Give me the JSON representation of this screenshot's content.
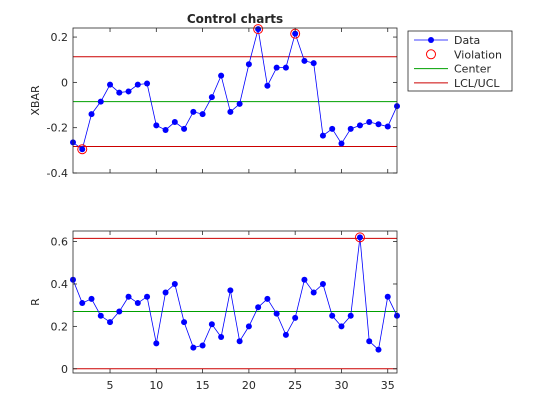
{
  "chart_data": [
    {
      "type": "line",
      "title": "Control charts",
      "xlabel": "",
      "ylabel": "XBAR",
      "xlim": [
        1,
        36
      ],
      "ylim": [
        -0.4,
        0.24
      ],
      "yticks": [
        -0.4,
        -0.2,
        0,
        0.2
      ],
      "ytick_labels": [
        "-0.4",
        "-0.2",
        "0",
        "0.2"
      ],
      "xticks": [],
      "center": -0.085,
      "lcl": -0.283,
      "ucl": 0.113,
      "series": [
        {
          "name": "Data",
          "x": [
            1,
            2,
            3,
            4,
            5,
            6,
            7,
            8,
            9,
            10,
            11,
            12,
            13,
            14,
            15,
            16,
            17,
            18,
            19,
            20,
            21,
            22,
            23,
            24,
            25,
            26,
            27,
            28,
            29,
            30,
            31,
            32,
            33,
            34,
            35,
            36
          ],
          "y": [
            -0.265,
            -0.295,
            -0.14,
            -0.085,
            -0.01,
            -0.045,
            -0.04,
            -0.01,
            -0.005,
            -0.19,
            -0.21,
            -0.175,
            -0.205,
            -0.13,
            -0.14,
            -0.065,
            0.03,
            -0.13,
            -0.095,
            0.08,
            0.235,
            -0.015,
            0.065,
            0.065,
            0.215,
            0.095,
            0.085,
            -0.235,
            -0.205,
            -0.27,
            -0.205,
            -0.19,
            -0.175,
            -0.185,
            -0.195,
            -0.105
          ]
        }
      ],
      "violations": [
        2,
        21,
        25
      ]
    },
    {
      "type": "line",
      "title": "",
      "xlabel": "",
      "ylabel": "R",
      "xlim": [
        1,
        36
      ],
      "ylim": [
        -0.02,
        0.65
      ],
      "yticks": [
        0,
        0.2,
        0.4,
        0.6
      ],
      "ytick_labels": [
        "0",
        "0.2",
        "0.4",
        "0.6"
      ],
      "xticks": [
        5,
        10,
        15,
        20,
        25,
        30,
        35
      ],
      "xtick_labels": [
        "5",
        "10",
        "15",
        "20",
        "25",
        "30",
        "35"
      ],
      "center": 0.27,
      "lcl": 0,
      "ucl": 0.615,
      "series": [
        {
          "name": "Data",
          "x": [
            1,
            2,
            3,
            4,
            5,
            6,
            7,
            8,
            9,
            10,
            11,
            12,
            13,
            14,
            15,
            16,
            17,
            18,
            19,
            20,
            21,
            22,
            23,
            24,
            25,
            26,
            27,
            28,
            29,
            30,
            31,
            32,
            33,
            34,
            35,
            36
          ],
          "y": [
            0.42,
            0.31,
            0.33,
            0.25,
            0.22,
            0.27,
            0.34,
            0.31,
            0.34,
            0.12,
            0.36,
            0.4,
            0.22,
            0.1,
            0.11,
            0.21,
            0.15,
            0.37,
            0.13,
            0.2,
            0.29,
            0.33,
            0.26,
            0.16,
            0.24,
            0.42,
            0.36,
            0.4,
            0.25,
            0.2,
            0.25,
            0.62,
            0.13,
            0.09,
            0.34,
            0.25
          ]
        }
      ],
      "violations": [
        32
      ]
    }
  ],
  "legend": {
    "placement": "top-right outside",
    "entries": [
      {
        "label": "Data",
        "color": "#0000ff"
      },
      {
        "label": "Violation",
        "color": "#ff0000"
      },
      {
        "label": "Center",
        "color": "#00aa00"
      },
      {
        "label": "LCL/UCL",
        "color": "#cc0000"
      }
    ]
  },
  "colors": {
    "data": "#0000ff",
    "violation": "#ff0000",
    "center": "#00a000",
    "limits": "#cc0000",
    "axes": "#262626"
  }
}
